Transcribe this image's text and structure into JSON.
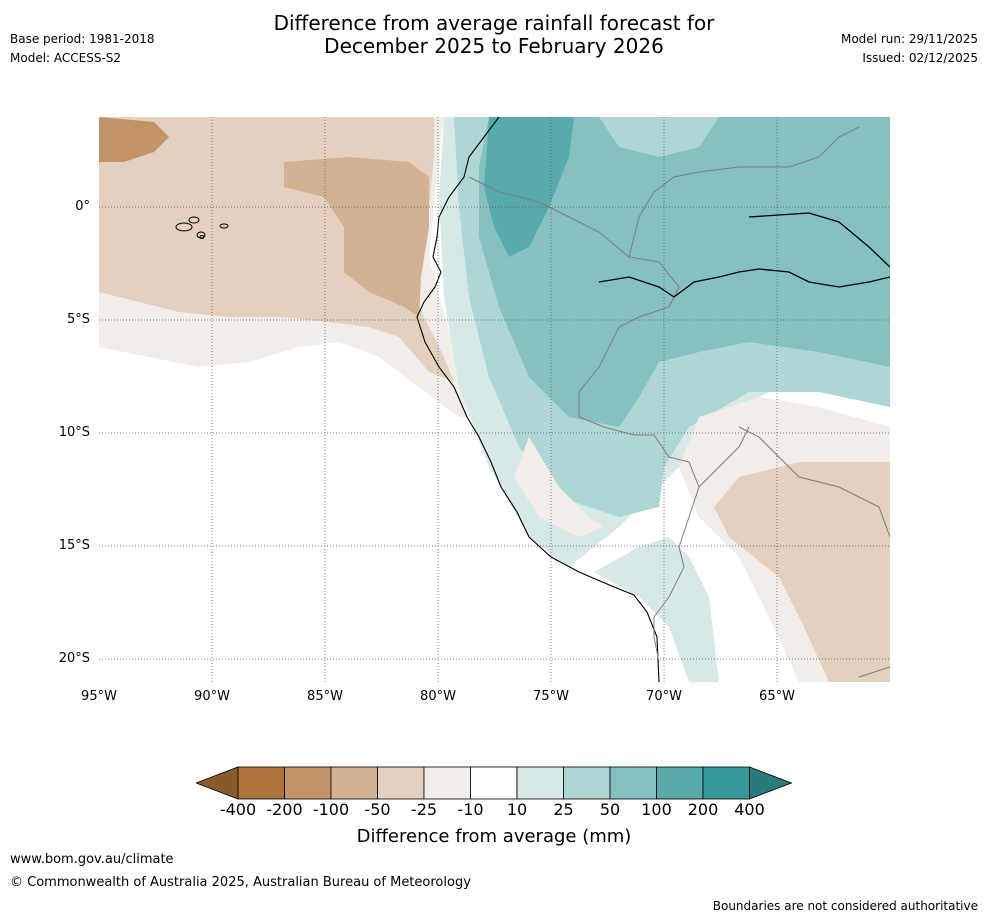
{
  "header": {
    "title_line1": "Difference from average rainfall forecast for",
    "title_line2": "December 2025 to February 2026",
    "base_period": "Base period: 1981-2018",
    "model": "Model: ACCESS-S2",
    "model_run": "Model run: 29/11/2025",
    "issued": "Issued: 02/12/2025"
  },
  "map": {
    "lat_ticks": [
      "0°",
      "5°S",
      "10°S",
      "15°S",
      "20°S"
    ],
    "lon_ticks": [
      "95°W",
      "90°W",
      "85°W",
      "80°W",
      "75°W",
      "70°W",
      "65°W"
    ],
    "region": "Western South America / Eastern Pacific"
  },
  "colorbar": {
    "labels": [
      "-400",
      "-200",
      "-100",
      "-50",
      "-25",
      "-10",
      "10",
      "25",
      "50",
      "100",
      "200",
      "400"
    ],
    "colors": [
      "#8b5a2b",
      "#ad733b",
      "#c19467",
      "#d2b292",
      "#e3d0be",
      "#f2ede8",
      "#ffffff",
      "#d6e9e8",
      "#add6d5",
      "#84c1c0",
      "#58abaa",
      "#349998",
      "#2a7b7a"
    ],
    "title": "Difference from average (mm)"
  },
  "footer": {
    "website": "www.bom.gov.au/climate",
    "copyright": "© Commonwealth of Australia 2025, Australian Bureau of Meteorology",
    "disclaimer": "Boundaries are not considered authoritative"
  }
}
